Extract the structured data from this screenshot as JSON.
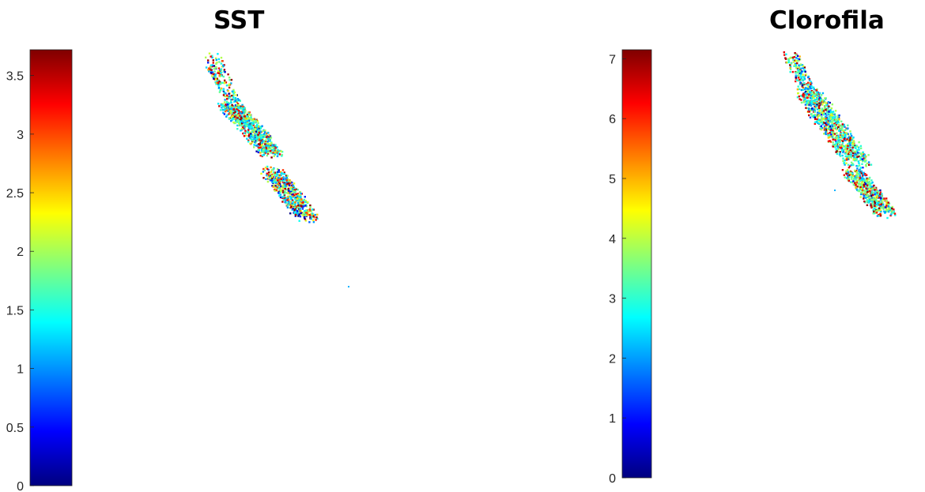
{
  "chart_data": [
    {
      "type": "heatmap",
      "title": "SST",
      "colormap": "jet",
      "colorbar": {
        "placement": "left",
        "range": [
          0,
          3.72
        ],
        "ticks": [
          0,
          0.5,
          1,
          1.5,
          2,
          2.5,
          3,
          3.5
        ],
        "tick_labels": [
          "0",
          "0.5",
          "1",
          "1.5",
          "2",
          "2.5",
          "3",
          "3.5"
        ]
      },
      "grid": false
    },
    {
      "type": "heatmap",
      "title": "Clorofila",
      "colormap": "jet",
      "colorbar": {
        "placement": "left",
        "range": [
          0,
          7.15
        ],
        "ticks": [
          0,
          1,
          2,
          3,
          4,
          5,
          6,
          7
        ],
        "tick_labels": [
          "0",
          "1",
          "2",
          "3",
          "4",
          "5",
          "6",
          "7"
        ]
      },
      "grid": false
    }
  ]
}
